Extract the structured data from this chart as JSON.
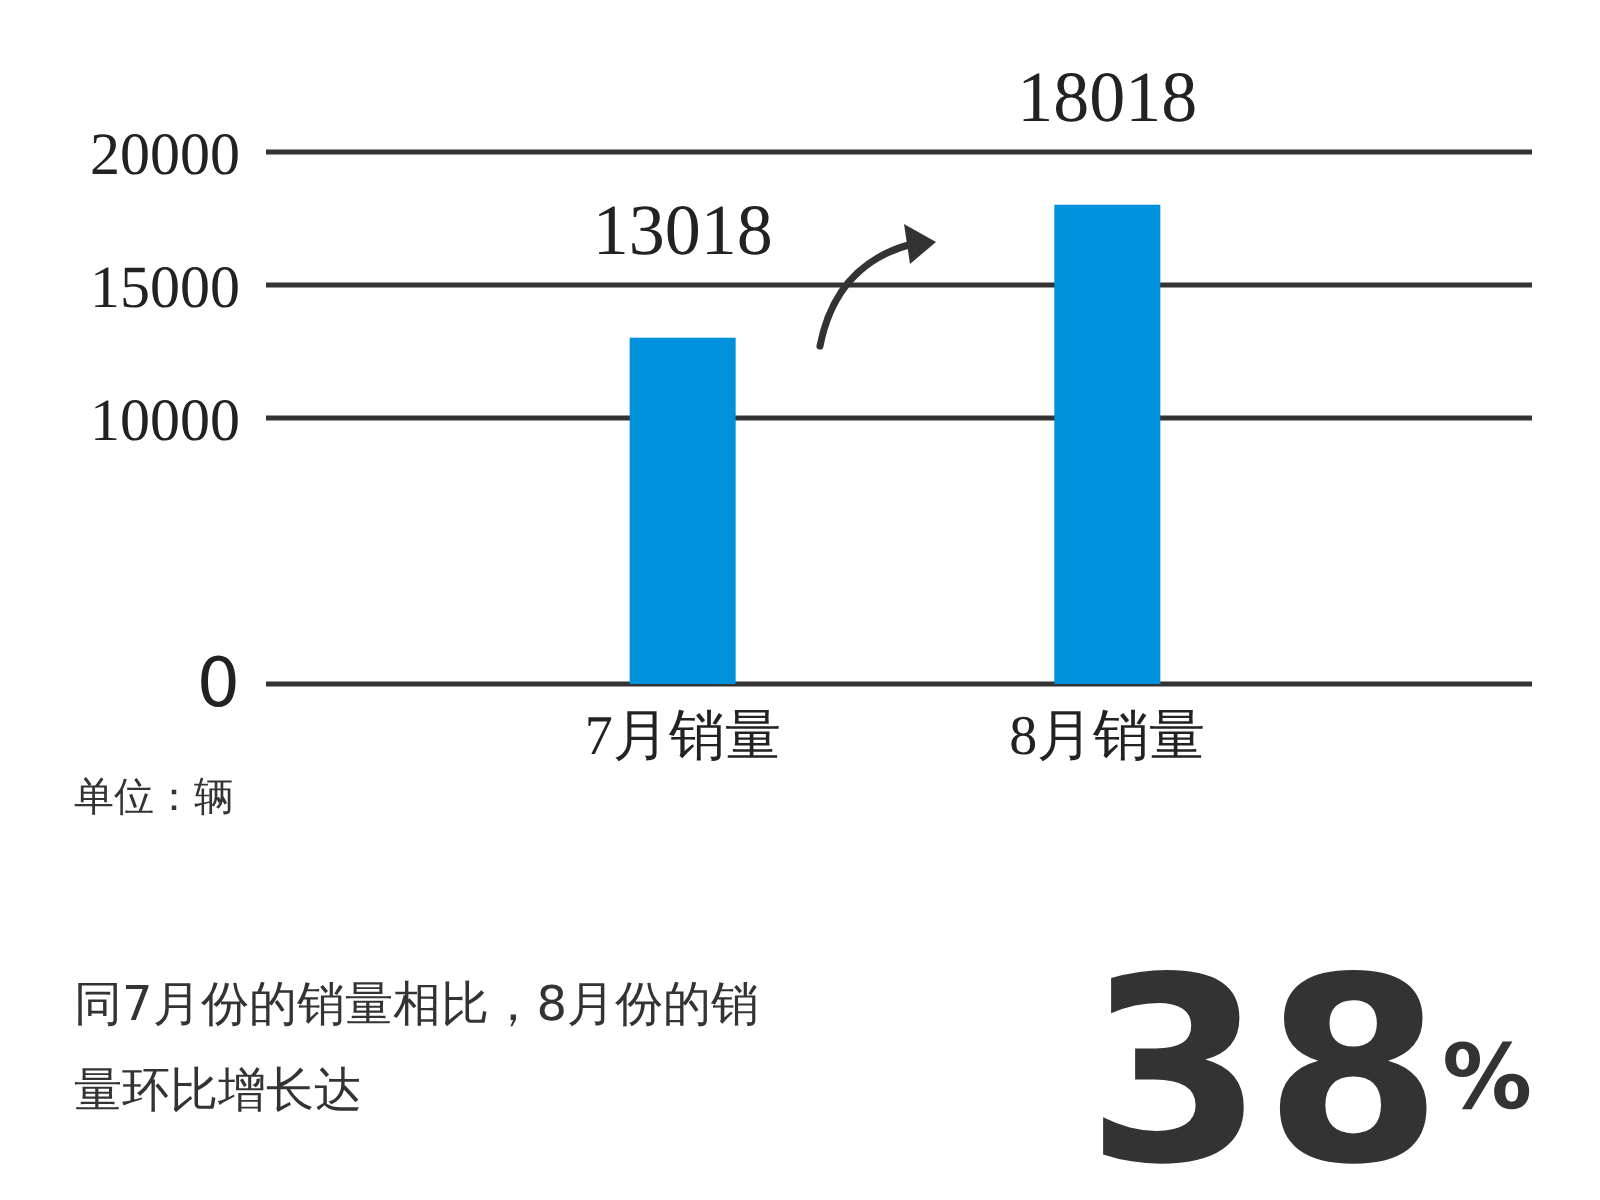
{
  "chart_data": {
    "type": "bar",
    "categories": [
      "7月销量",
      "8月销量"
    ],
    "values": [
      13018,
      18018
    ],
    "color": "#0091dc",
    "ylim": [
      0,
      20000
    ],
    "yticks": [
      0,
      10000,
      15000,
      20000
    ],
    "grid": "y",
    "data_labels": true,
    "annotations": [
      "单位：辆",
      "同7月份的销量相比，8月份的销量环比增长达",
      "38$^{%}$"
    ]
  }
}
